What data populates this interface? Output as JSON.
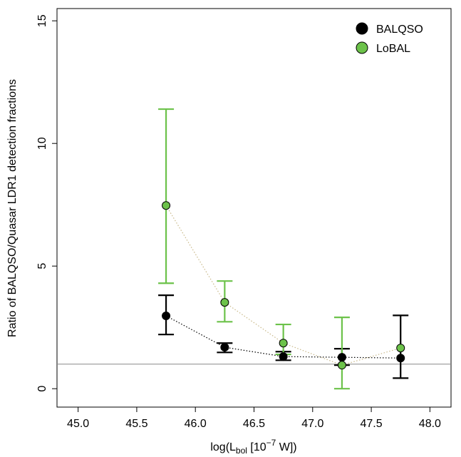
{
  "chart_data": {
    "type": "scatter",
    "ylabel": "Ratio of BALQSO/Quasar LDR1 detection fractions",
    "xlabel_parts": [
      "log(L",
      "bol",
      " [10",
      "−7",
      " W])"
    ],
    "x": [
      45.75,
      46.25,
      46.75,
      47.25,
      47.75
    ],
    "series": [
      {
        "name": "BALQSO",
        "color": "#000000",
        "line_color": "#000000",
        "values": [
          2.97,
          1.69,
          1.31,
          1.28,
          1.25
        ],
        "lower": [
          2.21,
          1.48,
          1.16,
          0.96,
          0.43
        ],
        "upper": [
          3.81,
          1.86,
          1.51,
          1.63,
          2.99
        ]
      },
      {
        "name": "LoBAL",
        "color": "#6cc24a",
        "line_color": "#c9b98a",
        "values": [
          7.47,
          3.52,
          1.86,
          0.96,
          1.66
        ],
        "lower": [
          4.3,
          2.73,
          1.4,
          0,
          null
        ],
        "upper": [
          11.4,
          4.39,
          2.62,
          2.91,
          null
        ]
      }
    ],
    "hline": 1,
    "xlim": [
      44.82,
      48.18
    ],
    "ylim": [
      -0.75,
      15.5
    ],
    "xticks": [
      {
        "value": 45,
        "label": "45.0"
      },
      {
        "value": 45.5,
        "label": "45.5"
      },
      {
        "value": 46,
        "label": "46.0"
      },
      {
        "value": 46.5,
        "label": "46.5"
      },
      {
        "value": 47,
        "label": "47.0"
      },
      {
        "value": 47.5,
        "label": "47.5"
      },
      {
        "value": 48,
        "label": "48.0"
      }
    ],
    "yticks": [
      0,
      5,
      10,
      15
    ],
    "legend": "top-right"
  }
}
